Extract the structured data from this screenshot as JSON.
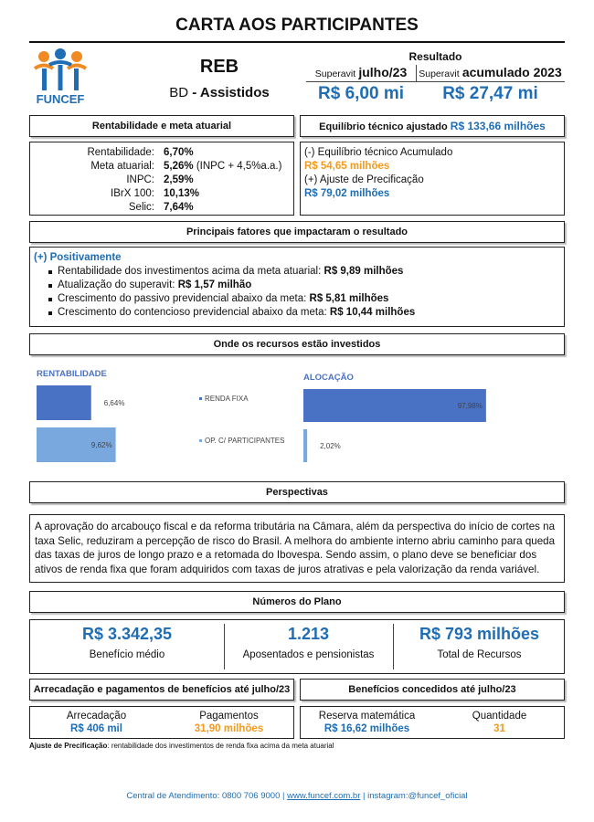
{
  "header": {
    "title": "CARTA AOS PARTICIPANTES",
    "logo_text": "FUNCEF"
  },
  "plan": {
    "name": "REB",
    "type_prefix": "BD",
    "type_name": "- Assistidos"
  },
  "result": {
    "heading": "Resultado",
    "month": {
      "prefix": "Superavit",
      "period": "julho/23",
      "value": "R$ 6,00 mi"
    },
    "year": {
      "prefix": "Superavit",
      "period": "acumulado 2023",
      "value": "R$ 27,47 mi"
    }
  },
  "returns": {
    "heading": "Rentabilidade e meta atuarial",
    "rows": [
      {
        "label": "Rentabilidade:",
        "value": "6,70%"
      },
      {
        "label": "Meta atuarial:",
        "value": "5,26%",
        "note": "(INPC + 4,5%a.a.)"
      },
      {
        "label": "INPC:",
        "value": "2,59%"
      },
      {
        "label": "IBrX 100:",
        "value": "10,13%"
      },
      {
        "label": "Selic:",
        "value": "7,64%"
      }
    ]
  },
  "balance": {
    "heading": "Equilíbrio técnico ajustado",
    "heading_value": "R$ 133,66 milhões",
    "items": [
      {
        "label": "(-) Equilíbrio técnico Acumulado",
        "value": "R$ 54,65 milhões"
      },
      {
        "label": "(+) Ajuste de Precificação",
        "value": "R$ 79,02 milhões"
      }
    ]
  },
  "factors": {
    "heading": "Principais fatores que impactaram o resultado",
    "group": "(+) Positivamente",
    "items": [
      {
        "text": "Rentabilidade dos investimentos acima da meta atuarial:",
        "value": "R$ 9,89 milhões"
      },
      {
        "text": "Atualização do superavit:",
        "value": "R$ 1,57 milhão"
      },
      {
        "text": "Crescimento do passivo previdencial abaixo da meta:",
        "value": "R$ 5,81 milhões"
      },
      {
        "text": "Crescimento do contencioso previdencial abaixo da meta:",
        "value": "R$ 10,44 milhões"
      }
    ]
  },
  "investments": {
    "heading": "Onde os recursos estão investidos"
  },
  "chart_data": [
    {
      "type": "bar",
      "orientation": "horizontal",
      "title": "RENTABILIDADE",
      "categories": [
        "RENDA FIXA",
        "OP. C/ PARTICIPANTES"
      ],
      "values": [
        6.64,
        9.62
      ],
      "value_labels": [
        "6,64%",
        "9,62%"
      ],
      "colors": [
        "#4a72c4",
        "#79a8df"
      ]
    },
    {
      "type": "bar",
      "orientation": "horizontal",
      "title": "ALOCAÇÃO",
      "values": [
        97.98,
        2.02
      ],
      "value_labels": [
        "97,98%",
        "2,02%"
      ],
      "colors": [
        "#4a72c4",
        "#79a8df"
      ]
    }
  ],
  "outlook": {
    "heading": "Perspectivas",
    "text": "A aprovação do arcabouço fiscal e da reforma tributária na Câmara, além da perspectiva do início de cortes na taxa Selic, reduziram a percepção de risco do Brasil. A melhora do ambiente interno abriu caminho para queda das taxas de juros de longo prazo e a retomada do Ibovespa. Sendo assim, o plano deve se beneficiar dos ativos de renda fixa que foram adquiridos com taxas de juros atrativas e pela valorização da renda variável."
  },
  "plan_numbers": {
    "heading": "Números do Plano",
    "items": [
      {
        "value": "R$ 3.342,35",
        "label": "Benefício médio"
      },
      {
        "value": "1.213",
        "label": "Aposentados e pensionistas"
      },
      {
        "value": "R$ 793 milhões",
        "label": "Total de Recursos"
      }
    ]
  },
  "collections": {
    "heading": "Arrecadação e pagamentos de benefícios até julho/23",
    "items": [
      {
        "label": "Arrecadação",
        "value": "R$ 406 mil"
      },
      {
        "label": "Pagamentos",
        "value": "31,90 milhões"
      }
    ]
  },
  "granted": {
    "heading": "Benefícios concedidos até julho/23",
    "items": [
      {
        "label": "Reserva matemática",
        "value": "R$ 16,62 milhões"
      },
      {
        "label": "Quantidade",
        "value": "31"
      }
    ]
  },
  "footnote": {
    "term": "Ajuste de Precificação",
    "text": ": rentabilidade dos investimentos de renda fixa acima da meta atuarial"
  },
  "footer": {
    "phone": "Central de Atendimento: 0800 706 9000",
    "separator": "|",
    "site": "www.funcef.com.br",
    "social": "instagram:@funcef_oficial"
  }
}
